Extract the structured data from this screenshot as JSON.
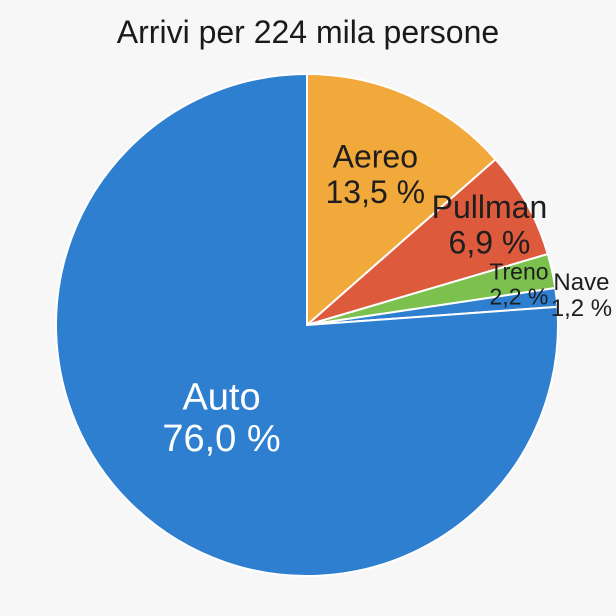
{
  "chart_data": {
    "type": "pie",
    "title": "Arrivi per 224 mila persone",
    "slices": [
      {
        "label": "Aereo",
        "value_text": "13,5 %",
        "value": 13.5,
        "color": "#f2a93b"
      },
      {
        "label": "Pullman",
        "value_text": "6,9 %",
        "value": 6.9,
        "color": "#de5a3c"
      },
      {
        "label": "Treno",
        "value_text": "2,2 %",
        "value": 2.2,
        "color": "#7cc04d"
      },
      {
        "label": "Nave",
        "value_text": "1,2 %",
        "value": 1.2,
        "color": "#2f7fd0"
      },
      {
        "label": "Auto",
        "value_text": "76,0 %",
        "value": 76.0,
        "color": "#2f7fd0"
      }
    ]
  }
}
